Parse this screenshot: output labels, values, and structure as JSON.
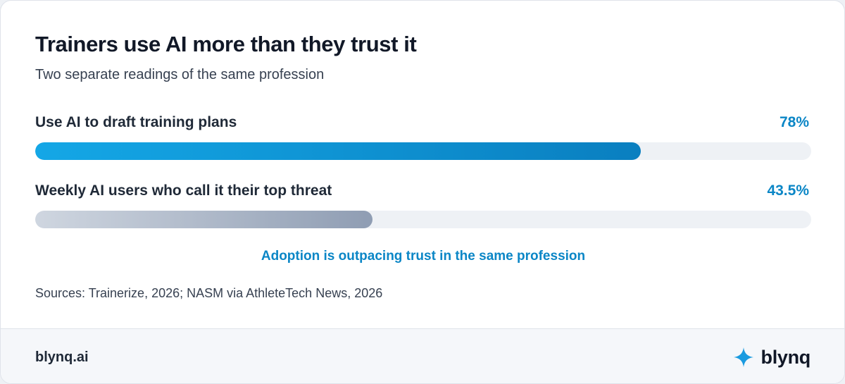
{
  "header": {
    "title": "Trainers use AI more than they trust it",
    "subtitle": "Two separate readings of the same profession"
  },
  "chart_data": {
    "type": "bar",
    "orientation": "horizontal",
    "categories": [
      "Use AI to draft training plans",
      "Weekly AI users who call it their top threat"
    ],
    "values": [
      78,
      43.5
    ],
    "value_labels": [
      "78%",
      "43.5%"
    ],
    "unit": "%",
    "xlim": [
      0,
      100
    ],
    "grid": false,
    "colors": [
      "#0b86c6",
      "#8f9db3"
    ],
    "annotation": "Adoption is outpacing trust in the same profession"
  },
  "sources": "Sources: Trainerize, 2026; NASM via AthleteTech News, 2026",
  "footer": {
    "site": "blynq.ai",
    "brand": "blynq",
    "brand_icon": "sparkle-icon",
    "accent": "#1a9be0"
  }
}
